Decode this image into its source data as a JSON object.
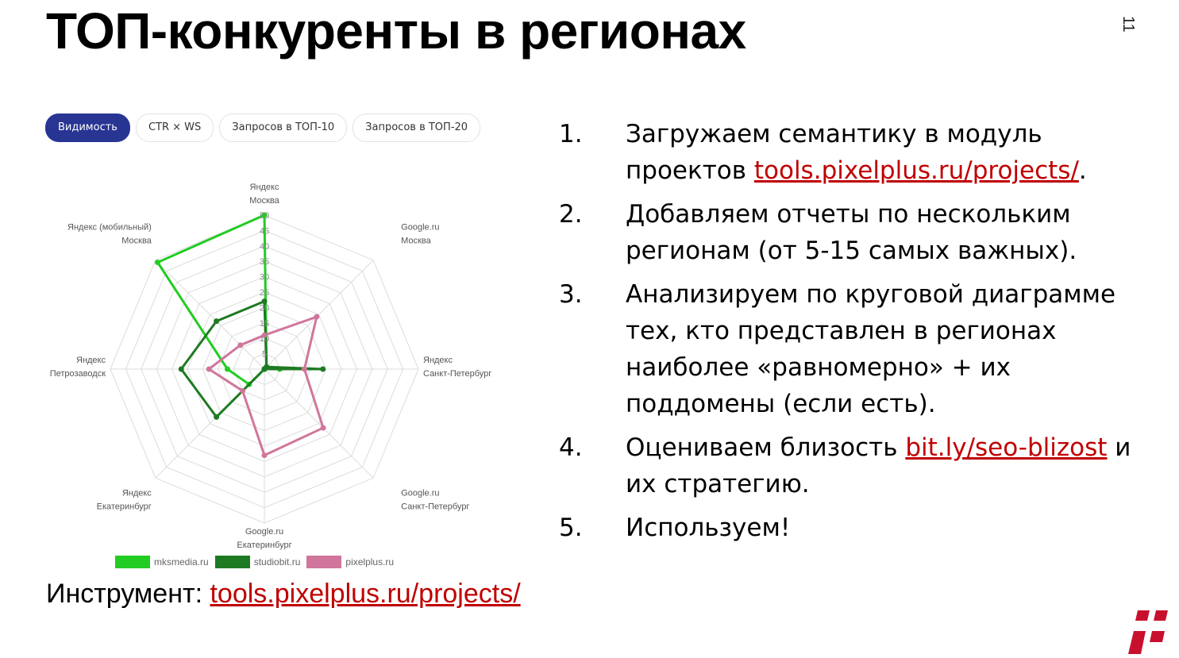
{
  "title": "ТОП-конкуренты в регионах",
  "page_number": "11",
  "tabs": [
    {
      "label": "Видимость",
      "active": true
    },
    {
      "label": "CTR × WS",
      "active": false
    },
    {
      "label": "Запросов в ТОП-10",
      "active": false
    },
    {
      "label": "Запросов в ТОП-20",
      "active": false
    }
  ],
  "chart_data": {
    "type": "radar",
    "axes": [
      [
        "Яндекс",
        "Москва"
      ],
      [
        "Google.ru",
        "Москва"
      ],
      [
        "Яндекс",
        "Санкт-Петербург"
      ],
      [
        "Google.ru",
        "Санкт-Петербург"
      ],
      [
        "Google.ru",
        "Екатеринбург"
      ],
      [
        "Яндекс",
        "Екатеринбург"
      ],
      [
        "Яндекс",
        "Петрозаводск"
      ],
      [
        "Яндекс (мобильный)",
        "Москва"
      ]
    ],
    "ticks": [
      "5",
      "10",
      "15",
      "20",
      "25",
      "30",
      "35",
      "40",
      "45",
      "50"
    ],
    "range": [
      0,
      50
    ],
    "series": [
      {
        "name": "mksmedia.ru",
        "color": "#22cc22",
        "values": [
          50,
          1,
          5,
          0,
          0,
          7,
          12,
          49
        ]
      },
      {
        "name": "studiobit.ru",
        "color": "#1e7a22",
        "values": [
          22,
          1,
          19,
          0,
          0,
          22,
          27,
          22
        ]
      },
      {
        "name": "pixelplus.ru",
        "color": "#d0769c",
        "values": [
          11,
          24,
          13,
          27,
          28,
          10,
          18,
          11
        ]
      }
    ],
    "legend": "bottom"
  },
  "tool": {
    "label": "Инструмент: ",
    "link": "tools.pixelplus.ru/projects/"
  },
  "steps": [
    {
      "num": "1.",
      "parts": [
        {
          "t": "Загружаем семантику в модуль проектов "
        },
        {
          "t": "tools.pixelplus.ru/projects/",
          "link": true
        },
        {
          "t": "."
        }
      ]
    },
    {
      "num": "2.",
      "parts": [
        {
          "t": "Добавляем отчеты по нескольким регионам (от 5-15 самых важных)."
        }
      ]
    },
    {
      "num": "3.",
      "parts": [
        {
          "t": "Анализируем по круговой диаграмме тех, кто представлен в регионах наиболее «равномерно» + их поддомены (если есть)."
        }
      ]
    },
    {
      "num": "4.",
      "parts": [
        {
          "t": "Оцениваем близость "
        },
        {
          "t": "bit.ly/seo-blizost",
          "link": true
        },
        {
          "t": " и их стратегию."
        }
      ]
    },
    {
      "num": "5.",
      "parts": [
        {
          "t": "Используем!"
        }
      ]
    }
  ],
  "logo_color": "#c8102e"
}
